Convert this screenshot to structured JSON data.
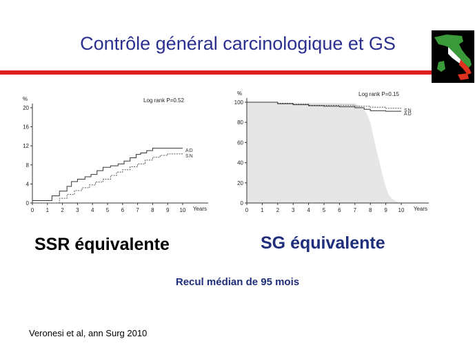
{
  "slide": {
    "title": "Contrôle général carcinologique et GS",
    "caption_left": "SSR équivalente",
    "caption_right": "SG équivalente",
    "subnote": "Recul médian de 95 mois",
    "reference": "Veronesi et al, ann Surg 2010",
    "colors": {
      "title": "#2b2f8f",
      "accent_line": "#e02020",
      "caption_right": "#1f2e7a"
    }
  },
  "chart_data": [
    {
      "type": "line",
      "title": "",
      "ylabel": "%",
      "xlabel": "Years",
      "annotation": "Log rank  P=0.52",
      "xlim": [
        0,
        10
      ],
      "ylim": [
        0,
        20
      ],
      "x_ticks": [
        0,
        1,
        2,
        3,
        4,
        5,
        6,
        7,
        8,
        9,
        10
      ],
      "y_ticks": [
        0,
        4,
        8,
        12,
        16,
        20
      ],
      "series": [
        {
          "name": "AD",
          "style": "solid",
          "x": [
            0,
            0.8,
            1.3,
            1.8,
            2.3,
            2.6,
            3.0,
            3.5,
            3.9,
            4.3,
            4.7,
            5.2,
            5.7,
            6.1,
            6.5,
            6.9,
            7.2,
            7.6,
            8.0,
            8.5,
            9.2,
            10.0
          ],
          "y": [
            0.5,
            0.5,
            1.5,
            2.5,
            3.5,
            4.5,
            5.0,
            5.5,
            6.0,
            6.8,
            7.5,
            7.8,
            8.2,
            8.8,
            9.5,
            10.2,
            10.5,
            11.0,
            11.5,
            11.5,
            11.5,
            11.5
          ]
        },
        {
          "name": "SN",
          "style": "dotted",
          "x": [
            0,
            1.0,
            1.8,
            2.3,
            2.8,
            3.3,
            3.8,
            4.2,
            4.7,
            5.2,
            5.6,
            6.0,
            6.5,
            7.0,
            7.5,
            8.0,
            8.5,
            9.0,
            10.0
          ],
          "y": [
            0,
            0,
            1.0,
            1.8,
            2.6,
            3.2,
            3.8,
            4.4,
            5.0,
            5.8,
            6.5,
            7.0,
            7.6,
            8.2,
            9.0,
            9.6,
            10.0,
            10.3,
            10.3
          ]
        }
      ]
    },
    {
      "type": "line",
      "title": "",
      "ylabel": "%",
      "xlabel": "Years",
      "annotation": "Log rank  P=0.15",
      "xlim": [
        0,
        10
      ],
      "ylim": [
        0,
        100
      ],
      "x_ticks": [
        0,
        1,
        2,
        3,
        4,
        5,
        6,
        7,
        8,
        9,
        10
      ],
      "y_ticks": [
        0,
        20,
        40,
        60,
        80,
        100
      ],
      "series": [
        {
          "name": "SN",
          "style": "dotted",
          "x": [
            0,
            1,
            2,
            3,
            4,
            5,
            6,
            7,
            8,
            9,
            10
          ],
          "y": [
            100,
            100,
            99,
            98,
            97,
            97,
            97,
            96,
            95,
            94,
            94
          ]
        },
        {
          "name": "AD",
          "style": "solid",
          "x": [
            0,
            1,
            2,
            3,
            4,
            5,
            6,
            7,
            7.6,
            8,
            9,
            10
          ],
          "y": [
            100,
            100,
            98.5,
            97.5,
            96.5,
            96,
            95.5,
            94.5,
            93,
            91.5,
            91,
            91
          ]
        }
      ],
      "shaded_area": {
        "x": [
          0,
          7,
          7.5,
          7.8,
          8.0,
          8.2,
          8.4,
          8.6,
          8.8,
          9.0,
          9.2,
          9.5,
          9.8,
          10
        ],
        "y": [
          100,
          99,
          95,
          88,
          80,
          66,
          52,
          40,
          27,
          16,
          8,
          3,
          1,
          0
        ]
      }
    }
  ]
}
